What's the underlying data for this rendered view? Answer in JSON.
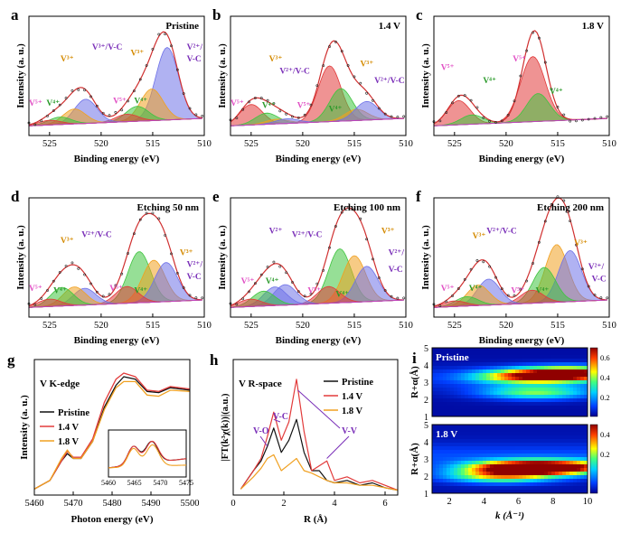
{
  "colors": {
    "red": "#e23a3a",
    "green": "#3fc43f",
    "blue": "#6f72e8",
    "orange": "#f0a020",
    "pink": "#e14fc4",
    "black": "#111111",
    "purple": "#7a2fb8",
    "orange_lbl": "#d48a00"
  },
  "xps_axis": {
    "xlabel": "Binding energy (eV)",
    "ylabel": "Intensity (a. u.)",
    "ticks": [
      "525",
      "520",
      "515",
      "510"
    ]
  },
  "panels": [
    {
      "letter": "a",
      "title": "Pristine",
      "labels": [
        "V³⁺",
        "V³⁺/V-C",
        "V³⁺",
        "V²⁺/",
        "V-C",
        "V⁵⁺",
        "V⁴⁺",
        "V⁵⁺",
        "V⁴⁺"
      ]
    },
    {
      "letter": "b",
      "title": "1.4 V",
      "labels": [
        "V³⁺",
        "V²⁺/V-C",
        "V³⁺",
        "V²⁺/V-C",
        "V⁵⁺",
        "V⁴⁺",
        "V⁵⁺",
        "V⁴⁺"
      ]
    },
    {
      "letter": "c",
      "title": "1.8 V",
      "labels": [
        "V⁵⁺",
        "V⁵⁺",
        "V⁴⁺",
        "V⁴⁺"
      ]
    },
    {
      "letter": "d",
      "title": "Etching 50 nm",
      "labels": [
        "V³⁺",
        "V²⁺/V-C",
        "V³⁺",
        "V²⁺/",
        "V-C",
        "V⁵⁺",
        "V⁴⁺",
        "V⁵⁺",
        "V⁴⁺"
      ]
    },
    {
      "letter": "e",
      "title": "Etching 100 nm",
      "labels": [
        "V²⁺",
        "V²⁺/V-C",
        "V³⁺",
        "V²⁺/",
        "V-C",
        "V⁵⁺",
        "V⁴⁺",
        "V⁵⁺",
        "V⁴⁺"
      ]
    },
    {
      "letter": "f",
      "title": "Etching 200 nm",
      "labels": [
        "V³⁺",
        "V²⁺/V-C",
        "V³⁺",
        "V²⁺/",
        "V-C",
        "V⁵⁺",
        "V⁴⁺",
        "V⁵⁺",
        "V⁴⁺"
      ]
    }
  ],
  "panel_g": {
    "letter": "g",
    "title": "V K-edge",
    "xlabel": "Photon energy (eV)",
    "ylabel": "Intensity (a. u.)",
    "xticks": [
      "5460",
      "5470",
      "5480",
      "5490",
      "5500"
    ],
    "inset_ticks": [
      "5460",
      "5465",
      "5470",
      "5475"
    ],
    "legend": [
      "Pristine",
      "1.4 V",
      "1.8 V"
    ]
  },
  "panel_h": {
    "letter": "h",
    "title": "V R-space",
    "xlabel": "R (Å)",
    "ylabel": "|FT(k³χ(k))|(a.u.)",
    "xticks": [
      "0",
      "2",
      "4",
      "6"
    ],
    "legend": [
      "Pristine",
      "1.4 V",
      "1.8 V"
    ],
    "annotations": [
      "V-O",
      "V-C",
      "V-V",
      "V-V"
    ]
  },
  "panel_i": {
    "letter": "i",
    "top_label": "Pristine",
    "bottom_label": "1.8 V",
    "ylabel": "R+α(Å)",
    "xlabel": "k (Å⁻¹)",
    "xticks": [
      "2",
      "4",
      "6",
      "8",
      "10"
    ],
    "yticks": [
      "1",
      "2",
      "3",
      "4",
      "5"
    ],
    "cbar_top": [
      "0.6",
      "0.4",
      "0.2"
    ],
    "cbar_bottom": [
      "0.4",
      "0.2"
    ]
  },
  "chart_data": [
    {
      "type": "line",
      "title": "Pristine",
      "xlabel": "Binding energy (eV)",
      "ylabel": "Intensity (a. u.)",
      "xlim": [
        527,
        510
      ],
      "series": [
        {
          "name": "V²⁺/V-C",
          "center": 513.6,
          "height": 0.78
        },
        {
          "name": "V³⁺",
          "center": 515.1,
          "height": 0.34
        },
        {
          "name": "V⁴⁺",
          "center": 516.5,
          "height": 0.16
        },
        {
          "name": "V⁵⁺",
          "center": 517.5,
          "height": 0.08
        },
        {
          "name": "V²⁺/V-C",
          "center": 521.5,
          "height": 0.26
        },
        {
          "name": "V³⁺",
          "center": 522.6,
          "height": 0.16
        },
        {
          "name": "V⁴⁺",
          "center": 524.0,
          "height": 0.08
        },
        {
          "name": "V⁵⁺",
          "center": 525.0,
          "height": 0.05
        }
      ]
    },
    {
      "type": "line",
      "title": "1.4 V",
      "xlabel": "Binding energy (eV)",
      "ylabel": "Intensity (a. u.)",
      "xlim": [
        527,
        510
      ],
      "series": [
        {
          "name": "V⁵⁺",
          "center": 517.4,
          "height": 0.6
        },
        {
          "name": "V⁴⁺",
          "center": 516.3,
          "height": 0.35
        },
        {
          "name": "V³⁺",
          "center": 514.8,
          "height": 0.12
        },
        {
          "name": "V²⁺/V-C",
          "center": 513.8,
          "height": 0.2
        },
        {
          "name": "V⁵⁺",
          "center": 525.0,
          "height": 0.22
        },
        {
          "name": "V⁴⁺",
          "center": 523.5,
          "height": 0.12
        },
        {
          "name": "V³⁺",
          "center": 522.5,
          "height": 0.05
        },
        {
          "name": "V²⁺/V-C",
          "center": 521.5,
          "height": 0.05
        }
      ]
    },
    {
      "type": "line",
      "title": "1.8 V",
      "xlabel": "Binding energy (eV)",
      "ylabel": "Intensity (a. u.)",
      "xlim": [
        527,
        510
      ],
      "series": [
        {
          "name": "V⁵⁺",
          "center": 517.4,
          "height": 0.7
        },
        {
          "name": "V⁴⁺",
          "center": 516.9,
          "height": 0.3
        },
        {
          "name": "V⁵⁺",
          "center": 524.6,
          "height": 0.26
        },
        {
          "name": "V⁴⁺",
          "center": 523.3,
          "height": 0.1
        }
      ]
    },
    {
      "type": "line",
      "title": "Etching 50 nm",
      "xlabel": "Binding energy (eV)",
      "ylabel": "Intensity (a. u.)",
      "xlim": [
        527,
        510
      ],
      "series": [
        {
          "name": "V⁴⁺",
          "center": 516.3,
          "height": 0.55
        },
        {
          "name": "V³⁺",
          "center": 514.9,
          "height": 0.45
        },
        {
          "name": "V²⁺/V-C",
          "center": 513.7,
          "height": 0.42
        },
        {
          "name": "V⁵⁺",
          "center": 517.5,
          "height": 0.18
        },
        {
          "name": "V²⁺/V-C",
          "center": 521.6,
          "height": 0.18
        },
        {
          "name": "V³⁺",
          "center": 522.6,
          "height": 0.2
        },
        {
          "name": "V⁴⁺",
          "center": 523.8,
          "height": 0.2
        },
        {
          "name": "V⁵⁺",
          "center": 525.0,
          "height": 0.08
        }
      ]
    },
    {
      "type": "line",
      "title": "Etching 100 nm",
      "xlabel": "Binding energy (eV)",
      "ylabel": "Intensity (a. u.)",
      "xlim": [
        527,
        510
      ],
      "series": [
        {
          "name": "V⁴⁺",
          "center": 516.4,
          "height": 0.58
        },
        {
          "name": "V³⁺",
          "center": 515.0,
          "height": 0.5
        },
        {
          "name": "V²⁺/V-C",
          "center": 513.8,
          "height": 0.38
        },
        {
          "name": "V⁵⁺",
          "center": 517.5,
          "height": 0.18
        },
        {
          "name": "V²⁺/V-C",
          "center": 521.7,
          "height": 0.22
        },
        {
          "name": "V²⁺",
          "center": 522.7,
          "height": 0.2
        },
        {
          "name": "V⁴⁺",
          "center": 523.8,
          "height": 0.16
        },
        {
          "name": "V⁵⁺",
          "center": 525.1,
          "height": 0.08
        }
      ]
    },
    {
      "type": "line",
      "title": "Etching 200 nm",
      "xlabel": "Binding energy (eV)",
      "ylabel": "Intensity (a. u.)",
      "xlim": [
        527,
        510
      ],
      "series": [
        {
          "name": "V³⁺",
          "center": 515.1,
          "height": 0.62
        },
        {
          "name": "V²⁺/V-C",
          "center": 513.8,
          "height": 0.55
        },
        {
          "name": "V⁴⁺",
          "center": 516.3,
          "height": 0.38
        },
        {
          "name": "V⁵⁺",
          "center": 517.5,
          "height": 0.14
        },
        {
          "name": "V²⁺/V-C",
          "center": 521.7,
          "height": 0.28
        },
        {
          "name": "V³⁺",
          "center": 522.7,
          "height": 0.22
        },
        {
          "name": "V⁴⁺",
          "center": 523.8,
          "height": 0.1
        },
        {
          "name": "V⁵⁺",
          "center": 525.0,
          "height": 0.06
        }
      ]
    },
    {
      "type": "line",
      "title": "V K-edge",
      "xlabel": "Photon energy (eV)",
      "ylabel": "Intensity (a. u.)",
      "xlim": [
        5460,
        5500
      ],
      "series": [
        {
          "name": "Pristine",
          "x": [
            5460,
            5464,
            5467,
            5468.5,
            5470,
            5472,
            5475,
            5478,
            5481,
            5483,
            5486,
            5489,
            5492,
            5495,
            5500
          ],
          "y": [
            0.05,
            0.12,
            0.28,
            0.34,
            0.3,
            0.3,
            0.44,
            0.72,
            0.9,
            0.97,
            0.95,
            0.85,
            0.84,
            0.88,
            0.86
          ]
        },
        {
          "name": "1.4 V",
          "x": [
            5460,
            5464,
            5467,
            5468.5,
            5470,
            5472,
            5475,
            5478,
            5481,
            5483,
            5486,
            5489,
            5492,
            5495,
            5500
          ],
          "y": [
            0.05,
            0.12,
            0.28,
            0.36,
            0.31,
            0.31,
            0.46,
            0.76,
            0.95,
            1.0,
            0.97,
            0.86,
            0.85,
            0.89,
            0.87
          ]
        },
        {
          "name": "1.8 V",
          "x": [
            5460,
            5464,
            5467,
            5468.5,
            5470,
            5472,
            5475,
            5478,
            5481,
            5483,
            5486,
            5489,
            5492,
            5495,
            5500
          ],
          "y": [
            0.05,
            0.12,
            0.3,
            0.37,
            0.3,
            0.3,
            0.44,
            0.7,
            0.88,
            0.93,
            0.93,
            0.82,
            0.81,
            0.86,
            0.85
          ]
        }
      ]
    },
    {
      "type": "line",
      "title": "V R-space",
      "xlabel": "R (Å)",
      "ylabel": "|FT(k³χ(k))|(a.u.)",
      "xlim": [
        0,
        6.5
      ],
      "series": [
        {
          "name": "Pristine",
          "x": [
            0.3,
            0.8,
            1.1,
            1.35,
            1.6,
            1.9,
            2.2,
            2.5,
            2.8,
            3.1,
            3.4,
            3.7,
            4.0,
            4.5,
            5.0,
            5.5,
            6.0,
            6.5
          ],
          "y": [
            0.05,
            0.2,
            0.28,
            0.4,
            0.55,
            0.35,
            0.45,
            0.62,
            0.35,
            0.2,
            0.2,
            0.12,
            0.1,
            0.12,
            0.08,
            0.1,
            0.06,
            0.04
          ]
        },
        {
          "name": "1.4 V",
          "x": [
            0.3,
            0.8,
            1.1,
            1.35,
            1.6,
            1.9,
            2.2,
            2.5,
            2.8,
            3.1,
            3.4,
            3.7,
            4.0,
            4.5,
            5.0,
            5.5,
            6.0,
            6.5
          ],
          "y": [
            0.05,
            0.2,
            0.3,
            0.48,
            0.68,
            0.45,
            0.6,
            0.95,
            0.52,
            0.2,
            0.24,
            0.28,
            0.12,
            0.15,
            0.1,
            0.12,
            0.08,
            0.04
          ]
        },
        {
          "name": "1.8 V",
          "x": [
            0.3,
            0.8,
            1.1,
            1.35,
            1.6,
            1.9,
            2.2,
            2.5,
            2.8,
            3.1,
            3.4,
            3.7,
            4.0,
            4.5,
            5.0,
            5.5,
            6.0,
            6.5
          ],
          "y": [
            0.05,
            0.15,
            0.22,
            0.3,
            0.33,
            0.2,
            0.25,
            0.3,
            0.2,
            0.18,
            0.15,
            0.12,
            0.1,
            0.1,
            0.08,
            0.08,
            0.06,
            0.04
          ]
        }
      ]
    },
    {
      "type": "heatmap",
      "title": "Pristine",
      "xlabel": "k (Å⁻¹)",
      "ylabel": "R+α(Å)",
      "xlim": [
        1,
        10
      ],
      "ylim": [
        1,
        5
      ],
      "zlim": [
        0,
        0.7
      ],
      "peaks": [
        {
          "k": 9.0,
          "R": 3.5,
          "z": 0.68
        },
        {
          "k": 6.5,
          "R": 3.3,
          "z": 0.45
        },
        {
          "k": 7.0,
          "R": 2.4,
          "z": 0.35
        }
      ]
    },
    {
      "type": "heatmap",
      "title": "1.8 V",
      "xlabel": "k (Å⁻¹)",
      "ylabel": "R+α(Å)",
      "xlim": [
        1,
        10
      ],
      "ylim": [
        1,
        5
      ],
      "zlim": [
        0,
        0.5
      ],
      "peaks": [
        {
          "k": 6.0,
          "R": 2.5,
          "z": 0.45
        },
        {
          "k": 8.5,
          "R": 2.5,
          "z": 0.4
        },
        {
          "k": 5.0,
          "R": 2.0,
          "z": 0.3
        }
      ]
    }
  ]
}
